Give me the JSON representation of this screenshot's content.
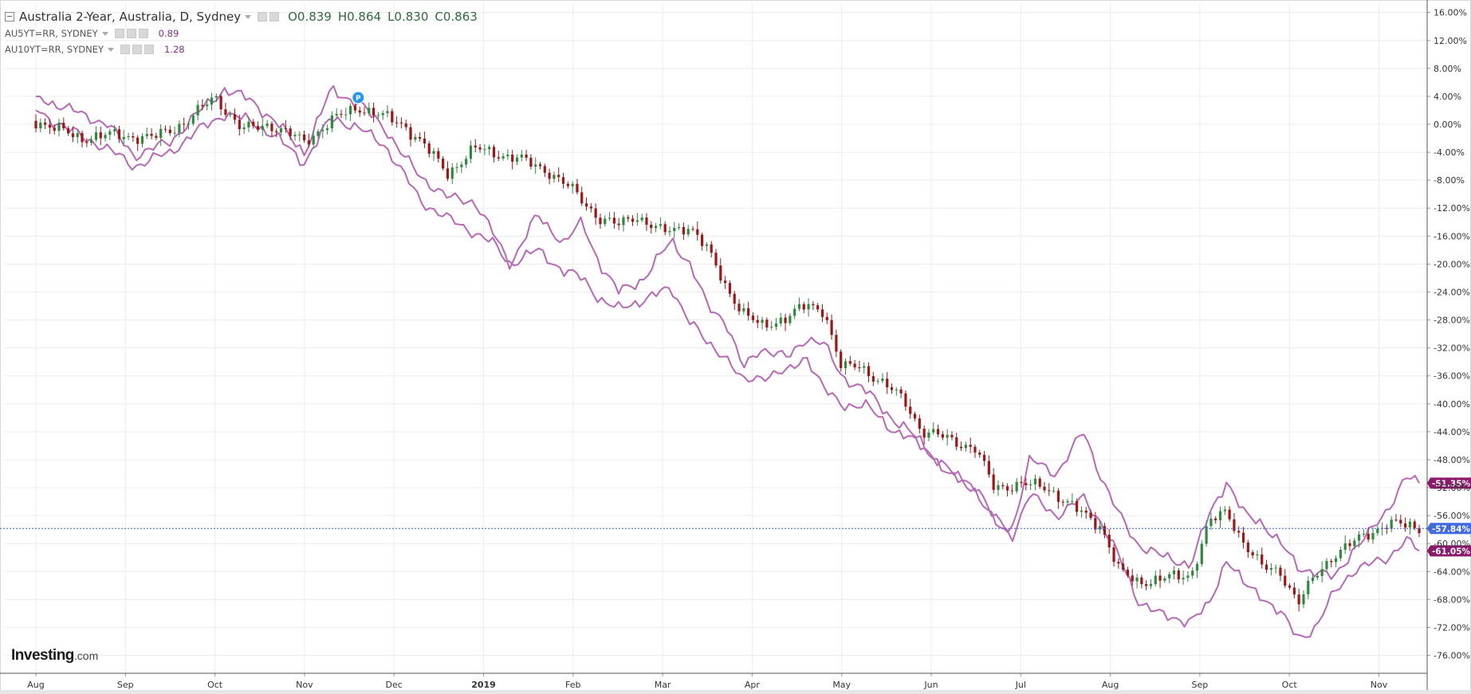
{
  "header": {
    "symbol_title": "Australia 2-Year, Australia, D, Sydney",
    "open": "O0.839",
    "high": "H0.864",
    "low": "L0.830",
    "close": "C0.863",
    "comparisons": [
      {
        "label": "AU5YT=RR, SYDNEY",
        "value": "0.89",
        "color": "#8b2c8b"
      },
      {
        "label": "AU10YT=RR, SYDNEY",
        "value": "1.28",
        "color": "#8b2c8b"
      }
    ]
  },
  "watermark": {
    "brand": "Investing",
    "suffix": ".com"
  },
  "price_marker": {
    "label": "P"
  },
  "colors": {
    "candle_up": "#2e8b3e",
    "candle_down": "#a31515",
    "compare_line": "#b768b7",
    "grid": "#ececec",
    "current_line": "#3b5bdb",
    "current_badge": "#4169e1",
    "compare_badge": "#8b1a6b",
    "marker": "#2196f3"
  },
  "chart_data": {
    "type": "line",
    "title": "Australia 2-Year, Australia, D, Sydney",
    "y_unit": "%",
    "ylim": [
      -78,
      17
    ],
    "y_ticks": [
      "16.00%",
      "12.00%",
      "8.00%",
      "4.00%",
      "0.00%",
      "-4.00%",
      "-8.00%",
      "-12.00%",
      "-16.00%",
      "-20.00%",
      "-24.00%",
      "-28.00%",
      "-32.00%",
      "-36.00%",
      "-40.00%",
      "-44.00%",
      "-48.00%",
      "-52.00%",
      "-56.00%",
      "-60.00%",
      "-64.00%",
      "-68.00%",
      "-72.00%",
      "-76.00%"
    ],
    "x_ticks": [
      "Aug",
      "Sep",
      "Oct",
      "Nov",
      "Dec",
      "2019",
      "Feb",
      "Mar",
      "Apr",
      "May",
      "Jun",
      "Jul",
      "Aug",
      "Sep",
      "Oct",
      "Nov"
    ],
    "x_bold_ticks": [
      "2019"
    ],
    "x_tick_months": [
      0,
      1,
      2,
      3,
      4,
      5,
      6,
      7,
      8,
      9,
      10,
      11,
      12,
      13,
      14,
      15
    ],
    "grid": true,
    "series": [
      {
        "name": "Australia 2-Year",
        "style": "candlestick",
        "x": [
          0,
          0.5,
          0.9,
          1.3,
          1.7,
          2.0,
          2.3,
          2.6,
          3.0,
          3.3,
          3.6,
          3.9,
          4.1,
          4.3,
          4.6,
          4.9,
          5.1,
          5.4,
          5.7,
          6.0,
          6.3,
          6.5,
          6.7,
          7.0,
          7.3,
          7.5,
          7.7,
          7.9,
          8.1,
          8.4,
          8.6,
          8.8,
          9.0,
          9.2,
          9.5,
          9.7,
          9.9,
          10.2,
          10.5,
          10.7,
          11.0,
          11.3,
          11.6,
          11.9,
          12.1,
          12.3,
          12.6,
          12.9,
          13.1,
          13.3,
          13.5,
          13.7,
          13.9,
          14.1,
          14.3,
          14.5,
          14.7,
          14.9,
          15.1,
          15.3,
          15.45
        ],
        "values": [
          0.5,
          -2.0,
          -1.5,
          -2.0,
          0.5,
          4.0,
          -0.8,
          0.0,
          -2.5,
          0.5,
          2.5,
          1.0,
          0.0,
          -2.5,
          -7.0,
          -3.5,
          -4.0,
          -5.0,
          -6.5,
          -9.5,
          -13.5,
          -14.5,
          -13.0,
          -15.5,
          -14.5,
          -18.0,
          -23.0,
          -27.0,
          -29.0,
          -27.5,
          -26.0,
          -26.5,
          -35.0,
          -34.5,
          -37.5,
          -39.5,
          -44.0,
          -45.0,
          -46.5,
          -52.0,
          -51.5,
          -52.0,
          -55.0,
          -57.5,
          -64.0,
          -65.5,
          -65.0,
          -64.5,
          -57.0,
          -55.5,
          -60.0,
          -63.5,
          -64.0,
          -68.5,
          -64.5,
          -61.5,
          -60.0,
          -58.5,
          -57.0,
          -57.5,
          -57.84
        ]
      },
      {
        "name": "AU5YT=RR, SYDNEY",
        "style": "line",
        "x": [
          0,
          0.4,
          0.8,
          1.1,
          1.5,
          1.8,
          2.1,
          2.4,
          2.7,
          3.0,
          3.3,
          3.6,
          3.9,
          4.1,
          4.3,
          4.6,
          4.9,
          5.1,
          5.3,
          5.6,
          5.9,
          6.1,
          6.3,
          6.5,
          6.8,
          7.1,
          7.3,
          7.5,
          7.7,
          7.9,
          8.1,
          8.4,
          8.6,
          8.8,
          9.0,
          9.3,
          9.6,
          9.9,
          10.2,
          10.5,
          10.7,
          10.9,
          11.1,
          11.4,
          11.7,
          11.9,
          12.1,
          12.3,
          12.6,
          12.9,
          13.1,
          13.3,
          13.5,
          13.7,
          13.9,
          14.1,
          14.3,
          14.5,
          14.7,
          14.9,
          15.1,
          15.3,
          15.45
        ],
        "values": [
          4.0,
          2.0,
          0.0,
          -4.5,
          -2.5,
          1.5,
          5.0,
          3.5,
          0.0,
          -4.0,
          5.0,
          3.0,
          -0.5,
          -4.5,
          -7.5,
          -10.5,
          -11.0,
          -15.5,
          -20.0,
          -13.0,
          -17.0,
          -14.0,
          -20.0,
          -24.0,
          -22.0,
          -16.5,
          -20.0,
          -26.0,
          -28.0,
          -35.0,
          -32.0,
          -33.5,
          -30.5,
          -31.5,
          -36.0,
          -38.5,
          -42.5,
          -45.5,
          -50.5,
          -51.5,
          -56.5,
          -58.0,
          -48.0,
          -50.0,
          -44.0,
          -50.5,
          -56.0,
          -60.0,
          -62.0,
          -63.0,
          -56.0,
          -51.0,
          -56.0,
          -57.0,
          -60.0,
          -63.5,
          -64.0,
          -65.0,
          -61.0,
          -58.5,
          -55.0,
          -50.5,
          -51.35
        ]
      },
      {
        "name": "AU10YT=RR, SYDNEY",
        "style": "line",
        "x": [
          0,
          0.4,
          0.8,
          1.1,
          1.5,
          1.8,
          2.1,
          2.4,
          2.7,
          3.0,
          3.3,
          3.6,
          3.9,
          4.1,
          4.3,
          4.6,
          4.9,
          5.1,
          5.3,
          5.6,
          5.9,
          6.1,
          6.3,
          6.5,
          6.8,
          7.1,
          7.3,
          7.5,
          7.7,
          7.9,
          8.1,
          8.4,
          8.6,
          8.8,
          9.0,
          9.3,
          9.6,
          9.9,
          10.2,
          10.5,
          10.7,
          10.9,
          11.1,
          11.4,
          11.7,
          11.9,
          12.1,
          12.3,
          12.6,
          12.9,
          13.1,
          13.3,
          13.5,
          13.7,
          13.9,
          14.1,
          14.3,
          14.5,
          14.7,
          14.9,
          15.1,
          15.3,
          15.45
        ],
        "values": [
          2.0,
          -1.0,
          -3.5,
          -6.0,
          -4.0,
          -1.0,
          1.5,
          0.5,
          -2.0,
          -5.5,
          1.0,
          -0.5,
          -3.0,
          -7.0,
          -11.0,
          -13.5,
          -15.5,
          -17.0,
          -20.0,
          -18.0,
          -21.0,
          -22.0,
          -25.0,
          -26.5,
          -25.0,
          -23.5,
          -28.0,
          -31.5,
          -33.0,
          -37.0,
          -36.0,
          -35.5,
          -33.0,
          -38.0,
          -40.0,
          -40.5,
          -44.0,
          -46.0,
          -49.5,
          -52.5,
          -57.0,
          -59.0,
          -53.0,
          -56.0,
          -53.5,
          -57.0,
          -62.0,
          -68.0,
          -70.5,
          -71.0,
          -69.0,
          -62.0,
          -66.0,
          -67.5,
          -70.0,
          -73.5,
          -72.0,
          -67.0,
          -64.0,
          -63.0,
          -62.0,
          -59.5,
          -61.05
        ]
      }
    ],
    "current_value_labels": [
      {
        "series": "AU5YT=RR, SYDNEY",
        "value": -51.35,
        "text": "-51.35%"
      },
      {
        "series": "Australia 2-Year",
        "value": -57.84,
        "text": "-57.84%"
      },
      {
        "series": "AU10YT=RR, SYDNEY",
        "value": -61.05,
        "text": "-61.05%"
      }
    ],
    "marker": {
      "series": "Australia 2-Year",
      "x": 3.6,
      "value": 2.0,
      "label": "P"
    },
    "legend": "top-left"
  }
}
